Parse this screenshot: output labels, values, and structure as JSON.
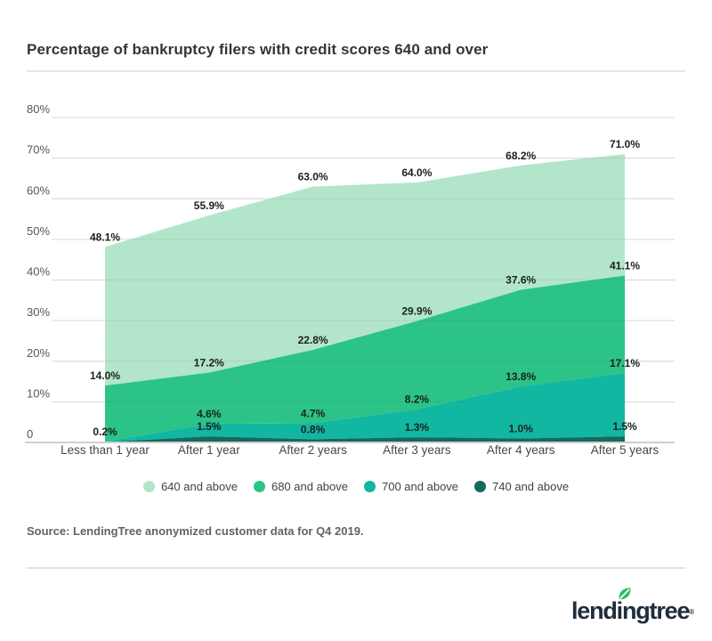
{
  "title": "Percentage of bankruptcy filers with credit scores 640 and over",
  "source": "Source: LendingTree anonymized customer data for Q4 2019.",
  "logo": {
    "text": "lendingtree",
    "registered": "®",
    "leaf_color": "#2bbd63",
    "text_color": "#1f2d3b"
  },
  "colors": {
    "grid": "#e4e4e4",
    "axis_line": "#cfcfcf",
    "data_label": "#1d1f22",
    "y_tick": "#53575c",
    "x_tick": "#44484d"
  },
  "chart_data": {
    "type": "area",
    "title": "Percentage of bankruptcy filers with credit scores 640 and over",
    "categories": [
      "Less than 1 year",
      "After 1 year",
      "After 2 years",
      "After 3 years",
      "After 4 years",
      "After 5 years"
    ],
    "series": [
      {
        "name": "640 and above",
        "color": "#b2e5ca",
        "values": [
          48.1,
          55.9,
          63.0,
          64.0,
          68.2,
          71.0
        ],
        "labels": [
          "48.1%",
          "55.9%",
          "63.0%",
          "64.0%",
          "68.2%",
          "71.0%"
        ]
      },
      {
        "name": "680 and above",
        "color": "#2cc387",
        "values": [
          14.0,
          17.2,
          22.8,
          29.9,
          37.6,
          41.1
        ],
        "labels": [
          "14.0%",
          "17.2%",
          "22.8%",
          "29.9%",
          "37.6%",
          "41.1%"
        ]
      },
      {
        "name": "700 and above",
        "color": "#12b7a2",
        "values": [
          0.2,
          4.6,
          4.7,
          8.2,
          13.8,
          17.1
        ],
        "labels": [
          "0.2%",
          "4.6%",
          "4.7%",
          "8.2%",
          "13.8%",
          "17.1%"
        ]
      },
      {
        "name": "740 and above",
        "color": "#136a5e",
        "values": [
          0.1,
          1.5,
          0.8,
          1.3,
          1.0,
          1.5
        ],
        "labels": [
          "",
          "1.5%",
          "0.8%",
          "1.3%",
          "1.0%",
          "1.5%"
        ]
      }
    ],
    "ylabel": "",
    "xlabel": "",
    "ylim": [
      0,
      80
    ],
    "ytick_labels": [
      "0",
      "10%",
      "20%",
      "30%",
      "40%",
      "50%",
      "60%",
      "70%",
      "80%"
    ],
    "grid": true,
    "legend_position": "bottom"
  }
}
